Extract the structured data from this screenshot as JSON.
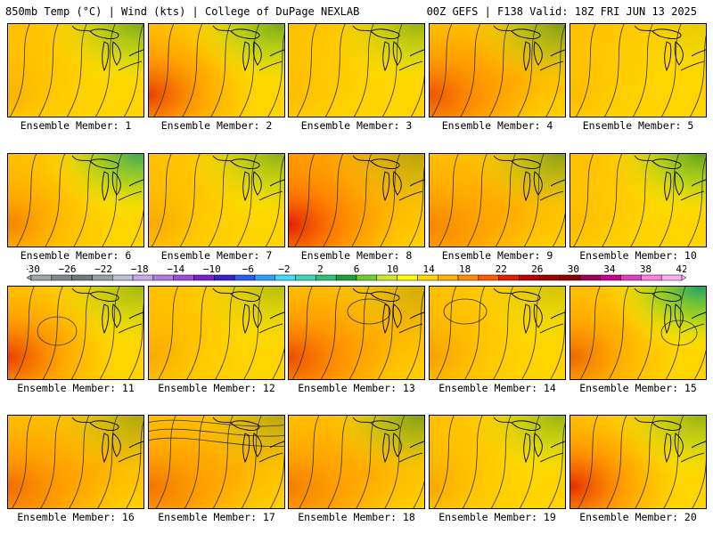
{
  "header": {
    "title_left": "850mb Temp (°C) | Wind (kts) | College of DuPage NEXLAB",
    "title_right": "00Z GEFS | F138 Valid: 18Z FRI JUN 13 2025"
  },
  "panels": [
    {
      "label": "Ensemble Member: 1",
      "warmth": 0.15,
      "north_cool": 0.55,
      "west_warm": 0.15,
      "accent_cool": false
    },
    {
      "label": "Ensemble Member: 2",
      "warmth": 0.25,
      "north_cool": 0.6,
      "west_warm": 0.75,
      "accent_cool": false
    },
    {
      "label": "Ensemble Member: 3",
      "warmth": 0.05,
      "north_cool": 0.45,
      "west_warm": 0.1,
      "accent_cool": false
    },
    {
      "label": "Ensemble Member: 4",
      "warmth": 0.35,
      "north_cool": 0.55,
      "west_warm": 0.6,
      "accent_cool": false
    },
    {
      "label": "Ensemble Member: 5",
      "warmth": 0.05,
      "north_cool": 0.1,
      "west_warm": 0.1,
      "accent_cool": false
    },
    {
      "label": "Ensemble Member: 6",
      "warmth": 0.1,
      "north_cool": 0.8,
      "west_warm": 0.4,
      "accent_cool": true
    },
    {
      "label": "Ensemble Member: 7",
      "warmth": 0.15,
      "north_cool": 0.5,
      "west_warm": 0.2,
      "accent_cool": false
    },
    {
      "label": "Ensemble Member: 8",
      "warmth": 0.55,
      "north_cool": 0.3,
      "west_warm": 0.9,
      "accent_cool": false
    },
    {
      "label": "Ensemble Member: 9",
      "warmth": 0.3,
      "north_cool": 0.5,
      "west_warm": 0.3,
      "accent_cool": false
    },
    {
      "label": "Ensemble Member: 10",
      "warmth": 0.05,
      "north_cool": 0.7,
      "west_warm": 0.1,
      "accent_cool": false
    },
    {
      "label": "Ensemble Member: 11",
      "warmth": 0.25,
      "north_cool": 0.4,
      "west_warm": 0.75,
      "accent_cool": false
    },
    {
      "label": "Ensemble Member: 12",
      "warmth": 0.2,
      "north_cool": 0.3,
      "west_warm": 0.2,
      "accent_cool": false
    },
    {
      "label": "Ensemble Member: 13",
      "warmth": 0.3,
      "north_cool": 0.2,
      "west_warm": 0.65,
      "accent_cool": false
    },
    {
      "label": "Ensemble Member: 14",
      "warmth": 0.25,
      "north_cool": 0.2,
      "west_warm": 0.25,
      "accent_cool": false
    },
    {
      "label": "Ensemble Member: 15",
      "warmth": 0.05,
      "north_cool": 0.95,
      "west_warm": 0.55,
      "accent_cool": true
    },
    {
      "label": "Ensemble Member: 16",
      "warmth": 0.3,
      "north_cool": 0.35,
      "west_warm": 0.45,
      "accent_cool": false
    },
    {
      "label": "Ensemble Member: 17",
      "warmth": 0.35,
      "north_cool": 0.3,
      "west_warm": 0.4,
      "accent_cool": false
    },
    {
      "label": "Ensemble Member: 18",
      "warmth": 0.3,
      "north_cool": 0.55,
      "west_warm": 0.35,
      "accent_cool": false
    },
    {
      "label": "Ensemble Member: 19",
      "warmth": 0.1,
      "north_cool": 0.45,
      "west_warm": 0.2,
      "accent_cool": false
    },
    {
      "label": "Ensemble Member: 20",
      "warmth": 0.2,
      "north_cool": 0.45,
      "west_warm": 0.85,
      "accent_cool": false
    }
  ],
  "colorbar": {
    "tick_labels": [
      "−30",
      "−26",
      "−22",
      "−18",
      "−14",
      "−10",
      "−6",
      "−2",
      "2",
      "6",
      "10",
      "14",
      "18",
      "22",
      "26",
      "30",
      "34",
      "38",
      "42"
    ],
    "colors": [
      "#9fa5a8",
      "#7d8a8b",
      "#6b7a7b",
      "#93a1a8",
      "#b8c2d6",
      "#c8a8e8",
      "#b07ee0",
      "#9a4fd8",
      "#7a1fd0",
      "#3a1fd0",
      "#2a5ff0",
      "#2fa0ff",
      "#3fdcff",
      "#3fd6b8",
      "#2fbf7a",
      "#1f9f3a",
      "#6fcf2f",
      "#cfe82a",
      "#ffff00",
      "#ffd700",
      "#ffb000",
      "#ff8c00",
      "#ff5a00",
      "#e02000",
      "#c00000",
      "#a00000",
      "#8b0000",
      "#a0005a",
      "#c8008c",
      "#e040c0",
      "#ff80e0",
      "#ffb0f0"
    ]
  }
}
